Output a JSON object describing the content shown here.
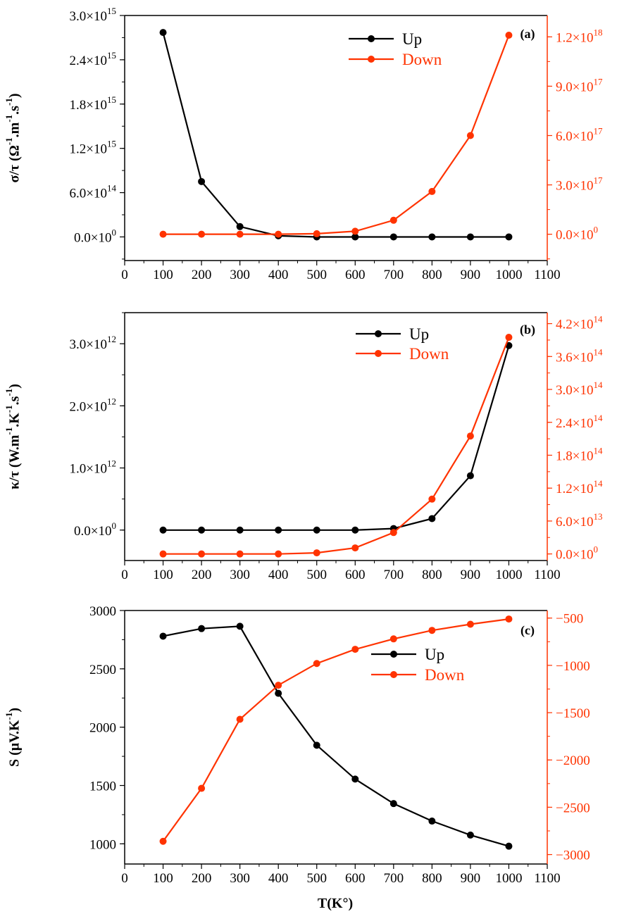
{
  "colors": {
    "up": "#000000",
    "down": "#ff3300",
    "axis": "#000000"
  },
  "xlabel": "T(K°)",
  "chart_data": [
    {
      "id": "a",
      "type": "line",
      "panel_label": "(a)",
      "ylabel_html": "σ/τ (Ω<tspan baseline-shift='super' font-size='13'>-1</tspan>.m<tspan baseline-shift='super' font-size='13'>-1</tspan>.s<tspan baseline-shift='super' font-size='13'>-1</tspan>)",
      "ylabel": "σ/τ (Ω-1.m-1.s-1)",
      "x": [
        100,
        200,
        300,
        400,
        500,
        600,
        700,
        800,
        900,
        1000
      ],
      "xlim": [
        0,
        1100
      ],
      "xticks": [
        "0",
        "100",
        "200",
        "300",
        "400",
        "500",
        "600",
        "700",
        "800",
        "900",
        "1000",
        "1100"
      ],
      "legend": {
        "position": "top-center",
        "entries": [
          "Up",
          "Down"
        ]
      },
      "left_axis": {
        "lim": [
          -320000000000000.0,
          3000000000000000.0
        ],
        "ticks": [
          0,
          600000000000000.0,
          1200000000000000.0,
          1800000000000000.0,
          2400000000000000.0,
          3000000000000000.0
        ],
        "tick_mant": [
          "0.0",
          "6.0",
          "1.2",
          "1.8",
          "2.4",
          "3.0"
        ],
        "tick_exp": [
          "0",
          "14",
          "15",
          "15",
          "15",
          "15"
        ]
      },
      "right_axis": {
        "lim": [
          -1.6e+17,
          1.33e+18
        ],
        "ticks": [
          0,
          3e+17,
          6e+17,
          9e+17,
          1.2e+18
        ],
        "tick_mant": [
          "0.0",
          "3.0",
          "6.0",
          "9.0",
          "1.2"
        ],
        "tick_exp": [
          "0",
          "17",
          "17",
          "17",
          "18"
        ]
      },
      "series": [
        {
          "name": "Up",
          "axis": "left",
          "values": [
            2770000000000000.0,
            750000000000000.0,
            140000000000000.0,
            15000000000000.0,
            0,
            0,
            0,
            0,
            0,
            0
          ]
        },
        {
          "name": "Down",
          "axis": "right",
          "values": [
            0,
            0,
            0,
            0,
            3000000000000000.0,
            1.8e+16,
            8.5e+16,
            2.6e+17,
            6e+17,
            1.21e+18
          ]
        }
      ]
    },
    {
      "id": "b",
      "type": "line",
      "panel_label": "(b)",
      "ylabel_html": "κ/τ (W.m<tspan baseline-shift='super' font-size='13'>-1</tspan>.K<tspan baseline-shift='super' font-size='13'>-1</tspan>.s<tspan baseline-shift='super' font-size='13'>-1</tspan>)",
      "ylabel": "κ/τ (W.m-1.K-1.s-1)",
      "x": [
        100,
        200,
        300,
        400,
        500,
        600,
        700,
        800,
        900,
        1000
      ],
      "xlim": [
        0,
        1100
      ],
      "xticks": [
        "0",
        "100",
        "200",
        "300",
        "400",
        "500",
        "600",
        "700",
        "800",
        "900",
        "1000",
        "1100"
      ],
      "legend": {
        "position": "top-center",
        "entries": [
          "Up",
          "Down"
        ]
      },
      "left_axis": {
        "lim": [
          -490000000000.0,
          3500000000000.0
        ],
        "ticks": [
          0,
          1000000000000.0,
          2000000000000.0,
          3000000000000.0
        ],
        "tick_mant": [
          "0.0",
          "1.0",
          "2.0",
          "3.0"
        ],
        "tick_exp": [
          "0",
          "12",
          "12",
          "12"
        ]
      },
      "right_axis": {
        "lim": [
          -12000000000000.0,
          440000000000000.0
        ],
        "ticks": [
          0,
          60000000000000.0,
          120000000000000.0,
          180000000000000.0,
          240000000000000.0,
          300000000000000.0,
          360000000000000.0,
          420000000000000.0
        ],
        "tick_mant": [
          "0.0",
          "6.0",
          "1.2",
          "1.8",
          "2.4",
          "3.0",
          "3.6",
          "4.2"
        ],
        "tick_exp": [
          "0",
          "13",
          "14",
          "14",
          "14",
          "14",
          "14",
          "14"
        ]
      },
      "series": [
        {
          "name": "Up",
          "axis": "left",
          "values": [
            0,
            0,
            0,
            0,
            0,
            0,
            25000000000.0,
            185000000000.0,
            875000000000.0,
            2970000000000.0
          ]
        },
        {
          "name": "Down",
          "axis": "right",
          "values": [
            0,
            0,
            0,
            0,
            2000000000000.0,
            11000000000000.0,
            39000000000000.0,
            100000000000000.0,
            215000000000000.0,
            395000000000000.0
          ]
        }
      ]
    },
    {
      "id": "c",
      "type": "line",
      "panel_label": "(c)",
      "ylabel_html": "S (μV.K<tspan baseline-shift='super' font-size='13'>-1</tspan>)",
      "ylabel": "S (μV.K-1)",
      "x": [
        100,
        200,
        300,
        400,
        500,
        600,
        700,
        800,
        900,
        1000
      ],
      "xlim": [
        0,
        1100
      ],
      "xticks": [
        "0",
        "100",
        "200",
        "300",
        "400",
        "500",
        "600",
        "700",
        "800",
        "900",
        "1000",
        "1100"
      ],
      "legend": {
        "position": "upper-middle",
        "entries": [
          "Up",
          "Down"
        ]
      },
      "left_axis": {
        "lim": [
          827,
          3000
        ],
        "ticks": [
          1000,
          1500,
          2000,
          2500,
          3000
        ],
        "tick_text": [
          "1000",
          "1500",
          "2000",
          "2500",
          "3000"
        ]
      },
      "right_axis": {
        "lim": [
          -3100,
          -420
        ],
        "ticks": [
          -3000,
          -2500,
          -2000,
          -1500,
          -1000,
          -500
        ],
        "tick_text": [
          "−3000",
          "−2500",
          "−2000",
          "−1500",
          "−1000",
          "−500"
        ]
      },
      "series": [
        {
          "name": "Up",
          "axis": "left",
          "values": [
            2780,
            2845,
            2865,
            2290,
            1845,
            1555,
            1345,
            1195,
            1075,
            980
          ]
        },
        {
          "name": "Down",
          "axis": "right",
          "values": [
            -2860,
            -2300,
            -1570,
            -1210,
            -980,
            -830,
            -720,
            -630,
            -565,
            -510
          ]
        }
      ]
    }
  ]
}
